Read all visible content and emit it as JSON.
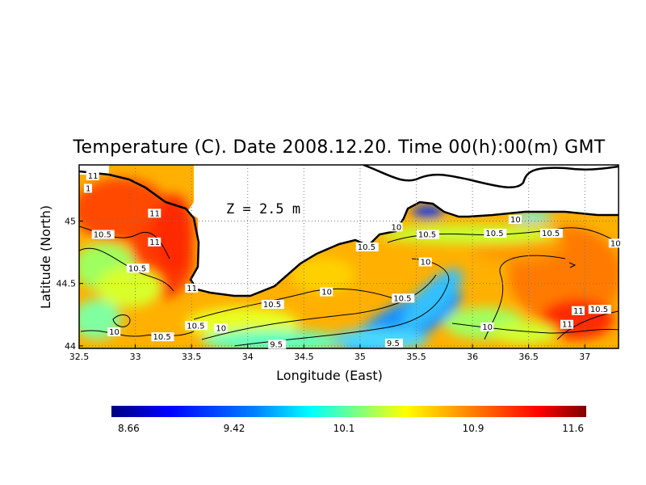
{
  "chart_data": {
    "type": "heatmap",
    "title": "Temperature (C). Date 2008.12.20. Time 00(h):00(m) GMT",
    "xlabel": "Longitude (East)",
    "ylabel": "Latitude (North)",
    "xlim": [
      32.5,
      37.3
    ],
    "ylim": [
      43.98,
      45.45
    ],
    "x_ticks": [
      "32.5",
      "33",
      "33.5",
      "34",
      "34.5",
      "35",
      "35.5",
      "36",
      "36.5",
      "37"
    ],
    "y_ticks": [
      "44",
      "44.5",
      "45"
    ],
    "grid": true,
    "depth_annotation": "Z = 2.5 m",
    "colorbar": {
      "orientation": "horizontal",
      "placement": "bottom",
      "min": 8.66,
      "max": 11.6,
      "tick_labels": [
        "8.66",
        "9.42",
        "10.1",
        "10.9",
        "11.6"
      ],
      "colors": [
        "#00007f",
        "#0000ff",
        "#007fff",
        "#00ffff",
        "#7fff7f",
        "#ffff00",
        "#ff7f00",
        "#ff0000",
        "#7f0000"
      ]
    },
    "contour_labels": [
      {
        "text": "11",
        "lon": 32.57,
        "lat": 45.34
      },
      {
        "text": "1",
        "lon": 32.55,
        "lat": 45.24
      },
      {
        "text": "11",
        "lon": 33.12,
        "lat": 45.04
      },
      {
        "text": "10.5",
        "lon": 32.62,
        "lat": 44.87
      },
      {
        "text": "11",
        "lon": 33.12,
        "lat": 44.81
      },
      {
        "text": "10.5",
        "lon": 32.93,
        "lat": 44.6
      },
      {
        "text": "11",
        "lon": 33.45,
        "lat": 44.44
      },
      {
        "text": "10.5",
        "lon": 33.45,
        "lat": 44.14
      },
      {
        "text": "10",
        "lon": 33.71,
        "lat": 44.12
      },
      {
        "text": "10",
        "lon": 32.76,
        "lat": 44.09
      },
      {
        "text": "10.5",
        "lon": 33.15,
        "lat": 44.05
      },
      {
        "text": "9.5",
        "lon": 34.19,
        "lat": 43.99
      },
      {
        "text": "10",
        "lon": 34.65,
        "lat": 44.41
      },
      {
        "text": "10.5",
        "lon": 34.13,
        "lat": 44.31
      },
      {
        "text": "10.5",
        "lon": 34.97,
        "lat": 44.77
      },
      {
        "text": "10.5",
        "lon": 35.29,
        "lat": 44.36
      },
      {
        "text": "10",
        "lon": 35.53,
        "lat": 44.65
      },
      {
        "text": "10",
        "lon": 35.27,
        "lat": 44.93
      },
      {
        "text": "10.5",
        "lon": 35.51,
        "lat": 44.87
      },
      {
        "text": "10.5",
        "lon": 36.11,
        "lat": 44.88
      },
      {
        "text": "10",
        "lon": 36.33,
        "lat": 44.99
      },
      {
        "text": "10.5",
        "lon": 36.61,
        "lat": 44.88
      },
      {
        "text": "10",
        "lon": 37.22,
        "lat": 44.8
      },
      {
        "text": "9.5",
        "lon": 35.23,
        "lat": 44.0
      },
      {
        "text": "10",
        "lon": 36.08,
        "lat": 44.13
      },
      {
        "text": "11",
        "lon": 36.89,
        "lat": 44.26
      },
      {
        "text": "10.5",
        "lon": 37.04,
        "lat": 44.27
      },
      {
        "text": "11",
        "lon": 36.79,
        "lat": 44.15
      }
    ]
  }
}
